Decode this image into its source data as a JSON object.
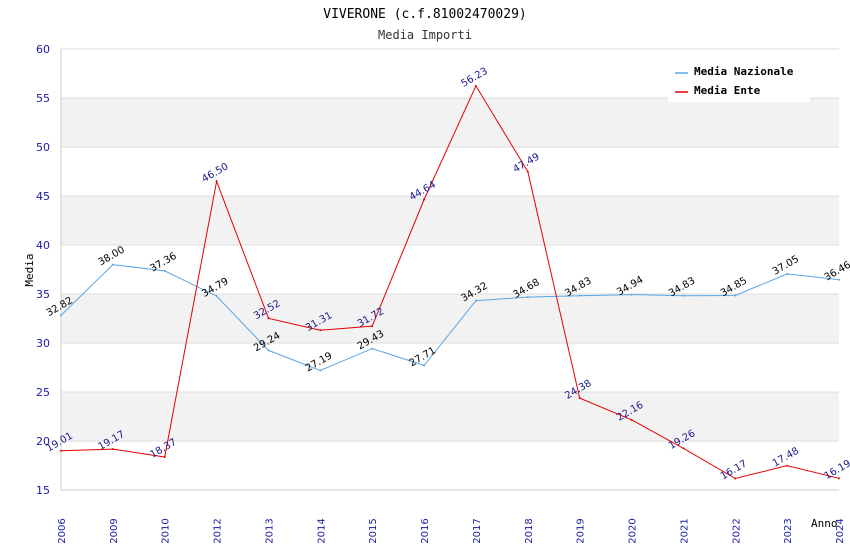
{
  "chart_data": {
    "type": "line",
    "title": "VIVERONE (c.f.81002470029)",
    "subtitle": "Media Importi",
    "xlabel": "Anno",
    "ylabel": "Media",
    "ylim": [
      15,
      60
    ],
    "yticks": [
      15,
      20,
      25,
      30,
      35,
      40,
      45,
      50,
      55,
      60
    ],
    "categories": [
      "2006",
      "2009",
      "2010",
      "2012",
      "2013",
      "2014",
      "2015",
      "2016",
      "2017",
      "2018",
      "2019",
      "2020",
      "2021",
      "2022",
      "2023",
      "2024"
    ],
    "series": [
      {
        "name": "Media Nazionale",
        "color": "#5aa6e6",
        "label_color": "#000000",
        "values": [
          32.82,
          38.0,
          37.36,
          34.79,
          29.24,
          27.19,
          29.43,
          27.71,
          34.32,
          34.68,
          34.83,
          34.94,
          34.83,
          34.85,
          37.05,
          36.46
        ],
        "labels": [
          "32.82",
          "38.00",
          "37.36",
          "34.79",
          "29.24",
          "27.19",
          "29.43",
          "27.71",
          "34.32",
          "34.68",
          "34.83",
          "34.94",
          "34.83",
          "34.85",
          "37.05",
          "36.46"
        ]
      },
      {
        "name": "Media Ente",
        "color": "#e60000",
        "label_color": "#1a1a8c",
        "values": [
          19.01,
          19.17,
          18.37,
          46.5,
          32.52,
          31.31,
          31.72,
          44.64,
          56.23,
          47.49,
          24.38,
          22.16,
          19.26,
          16.17,
          17.48,
          16.19
        ],
        "labels": [
          "19.01",
          "19.17",
          "18.37",
          "46.50",
          "32.52",
          "31.31",
          "31.72",
          "44.64",
          "56.23",
          "47.49",
          "24.38",
          "22.16",
          "19.26",
          "16.17",
          "17.48",
          "16.19"
        ]
      }
    ],
    "grid": true,
    "legend_position": "top-right"
  }
}
